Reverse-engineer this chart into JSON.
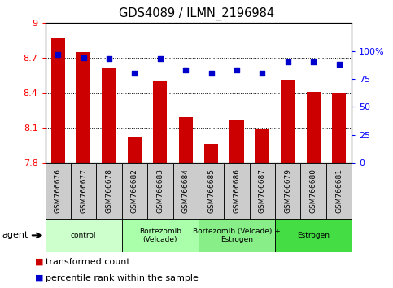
{
  "title": "GDS4089 / ILMN_2196984",
  "samples": [
    "GSM766676",
    "GSM766677",
    "GSM766678",
    "GSM766682",
    "GSM766683",
    "GSM766684",
    "GSM766685",
    "GSM766686",
    "GSM766687",
    "GSM766679",
    "GSM766680",
    "GSM766681"
  ],
  "bar_values": [
    8.87,
    8.75,
    8.62,
    8.02,
    8.5,
    8.19,
    7.96,
    8.17,
    8.09,
    8.51,
    8.41,
    8.4
  ],
  "percentile_values": [
    97,
    94,
    93,
    80,
    93,
    83,
    80,
    83,
    80,
    90,
    90,
    88
  ],
  "bar_color": "#cc0000",
  "dot_color": "#0000cc",
  "ylim_left": [
    7.8,
    9.0
  ],
  "yticks_left": [
    7.8,
    8.1,
    8.4,
    8.7,
    9.0
  ],
  "ytick_labels_left": [
    "7.8",
    "8.1",
    "8.4",
    "8.7",
    "9"
  ],
  "yticks_right": [
    0,
    25,
    50,
    75,
    100
  ],
  "ytick_labels_right": [
    "0",
    "25",
    "50",
    "75",
    "100%"
  ],
  "pct_ylim": [
    0,
    125
  ],
  "groups": [
    {
      "label": "control",
      "start": 0,
      "end": 3,
      "color": "#ccffcc"
    },
    {
      "label": "Bortezomib\n(Velcade)",
      "start": 3,
      "end": 6,
      "color": "#aaffaa"
    },
    {
      "label": "Bortezomib (Velcade) +\nEstrogen",
      "start": 6,
      "end": 9,
      "color": "#88ee88"
    },
    {
      "label": "Estrogen",
      "start": 9,
      "end": 12,
      "color": "#44dd44"
    }
  ],
  "agent_label": "agent",
  "legend_bar_label": "transformed count",
  "legend_dot_label": "percentile rank within the sample",
  "bar_width": 0.55,
  "cell_color": "#cccccc"
}
